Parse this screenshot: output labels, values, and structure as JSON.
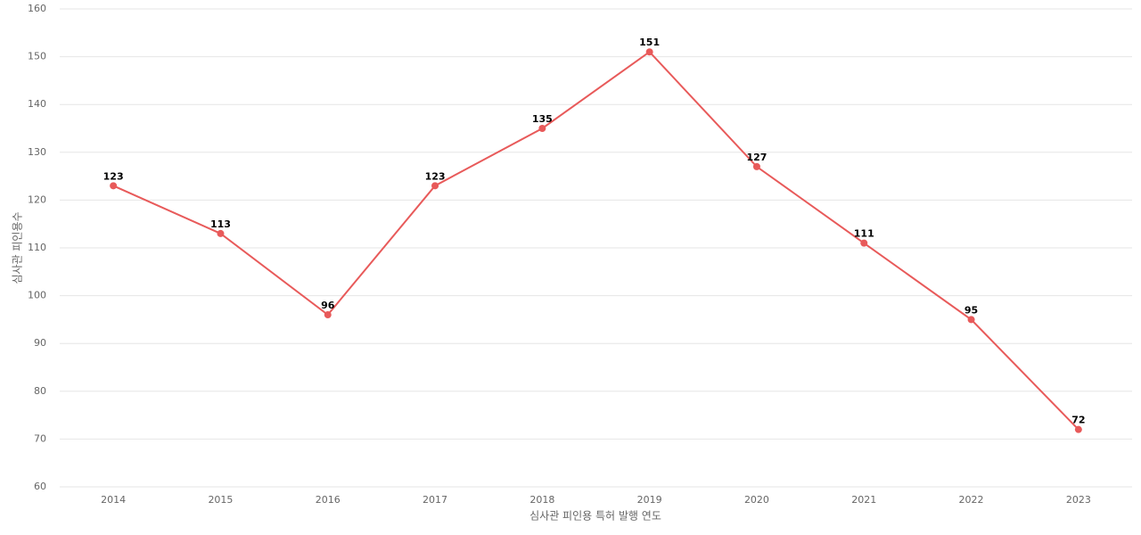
{
  "chart_data": {
    "type": "line",
    "x_label": "심사관 피인용 특허 발행 연도",
    "y_label": "심사관 피인용수",
    "categories": [
      "2014",
      "2015",
      "2016",
      "2017",
      "2018",
      "2019",
      "2020",
      "2021",
      "2022",
      "2023"
    ],
    "series": [
      {
        "color": "#e85a5a",
        "values": [
          123,
          113,
          96,
          123,
          135,
          151,
          127,
          111,
          95,
          72
        ]
      }
    ],
    "ylim": [
      60,
      160
    ],
    "yticks": [
      60,
      70,
      80,
      90,
      100,
      110,
      120,
      130,
      140,
      150,
      160
    ],
    "grid": true
  }
}
